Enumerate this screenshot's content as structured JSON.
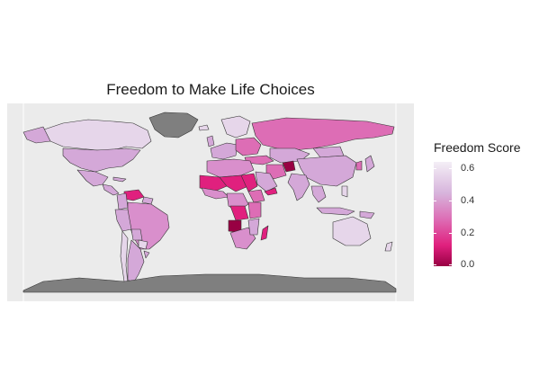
{
  "title": "Freedom to Make Life Choices",
  "legend": {
    "title": "Freedom Score",
    "ticks": [
      "0.6",
      "0.4",
      "0.2",
      "0.0"
    ],
    "min": 0.0,
    "max": 0.65,
    "low_color": "#980043",
    "mid_color": "#dd6db5",
    "high_color": "#f4eff6"
  },
  "colors": {
    "panel_background": "#ebebeb",
    "no_data": "#7f7f7f",
    "border": "#333333"
  }
}
